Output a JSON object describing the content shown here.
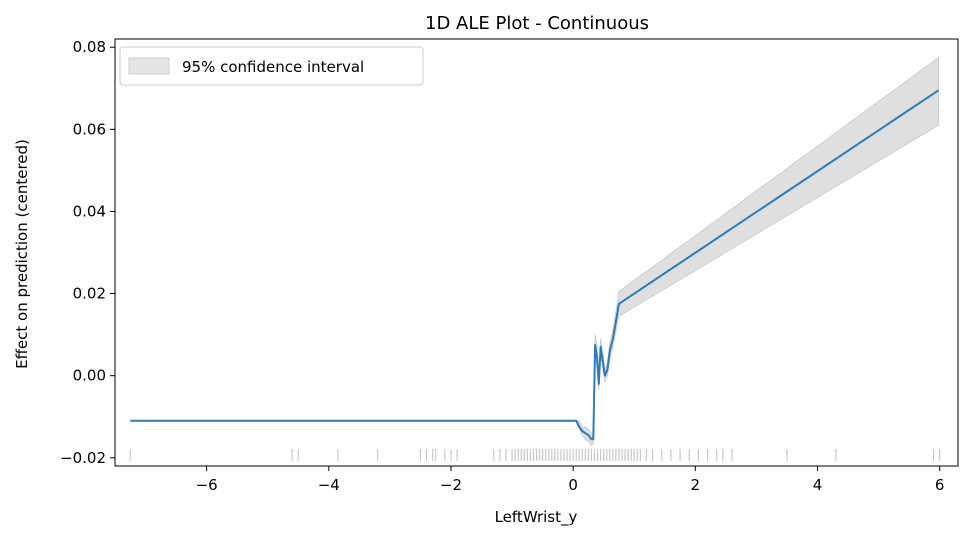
{
  "chart_data": {
    "type": "line",
    "title": "1D ALE Plot - Continuous",
    "xlabel": "LeftWrist_y",
    "ylabel": "Effect on prediction (centered)",
    "xlim": [
      -7.5,
      6.3
    ],
    "ylim": [
      -0.022,
      0.082
    ],
    "xticks": [
      -6,
      -4,
      -2,
      0,
      2,
      4,
      6
    ],
    "xtick_labels": [
      "−6",
      "−4",
      "−2",
      "0",
      "2",
      "4",
      "6"
    ],
    "yticks": [
      -0.02,
      0.0,
      0.02,
      0.04,
      0.06,
      0.08
    ],
    "ytick_labels": [
      "−0.02",
      "0.00",
      "0.02",
      "0.04",
      "0.06",
      "0.08"
    ],
    "grid": false,
    "legend": {
      "placement": "top-left",
      "entries": [
        "95% confidence interval"
      ]
    },
    "series": [
      {
        "x": [
          -7.25,
          0.05,
          0.1,
          0.15,
          0.2,
          0.25,
          0.3,
          0.33,
          0.36,
          0.39,
          0.42,
          0.45,
          0.48,
          0.52,
          0.56,
          0.6,
          0.65,
          0.75,
          5.98
        ],
        "y": [
          -0.011,
          -0.011,
          -0.0125,
          -0.0135,
          -0.014,
          -0.0145,
          -0.0155,
          -0.0155,
          0.0075,
          0.0045,
          -0.002,
          0.007,
          0.004,
          0.0,
          0.0015,
          0.006,
          0.009,
          0.0175,
          0.0695
        ],
        "ci_lower": [
          -0.011,
          -0.011,
          -0.013,
          -0.0145,
          -0.0155,
          -0.016,
          -0.017,
          -0.0165,
          0.005,
          0.002,
          -0.0035,
          0.005,
          0.002,
          -0.0015,
          0.0,
          0.004,
          0.007,
          0.0145,
          0.061
        ],
        "ci_upper": [
          -0.011,
          -0.011,
          -0.011,
          -0.0125,
          -0.0125,
          -0.013,
          -0.014,
          -0.0145,
          0.01,
          0.0075,
          -0.0005,
          0.009,
          0.006,
          0.0015,
          0.003,
          0.008,
          0.011,
          0.0205,
          0.0775
        ]
      }
    ],
    "rug": [
      -7.25,
      -4.6,
      -4.5,
      -3.85,
      -3.2,
      -2.5,
      -2.4,
      -2.3,
      -2.25,
      -2.1,
      -2.0,
      -1.9,
      -1.3,
      -1.2,
      -1.1,
      -1.0,
      -0.95,
      -0.9,
      -0.85,
      -0.8,
      -0.75,
      -0.7,
      -0.65,
      -0.6,
      -0.55,
      -0.5,
      -0.45,
      -0.4,
      -0.35,
      -0.3,
      -0.25,
      -0.2,
      -0.15,
      -0.1,
      -0.05,
      0.0,
      0.05,
      0.1,
      0.15,
      0.2,
      0.25,
      0.3,
      0.35,
      0.4,
      0.45,
      0.5,
      0.55,
      0.6,
      0.65,
      0.7,
      0.75,
      0.8,
      0.85,
      0.9,
      0.95,
      1.0,
      1.05,
      1.1,
      1.2,
      1.3,
      1.45,
      1.6,
      1.75,
      1.9,
      2.05,
      2.2,
      2.35,
      2.45,
      2.6,
      3.5,
      4.3,
      5.9,
      6.0
    ],
    "colors": {
      "line": "#2c7bb6",
      "band": "#d9d9d9",
      "rug": "#000000"
    }
  }
}
